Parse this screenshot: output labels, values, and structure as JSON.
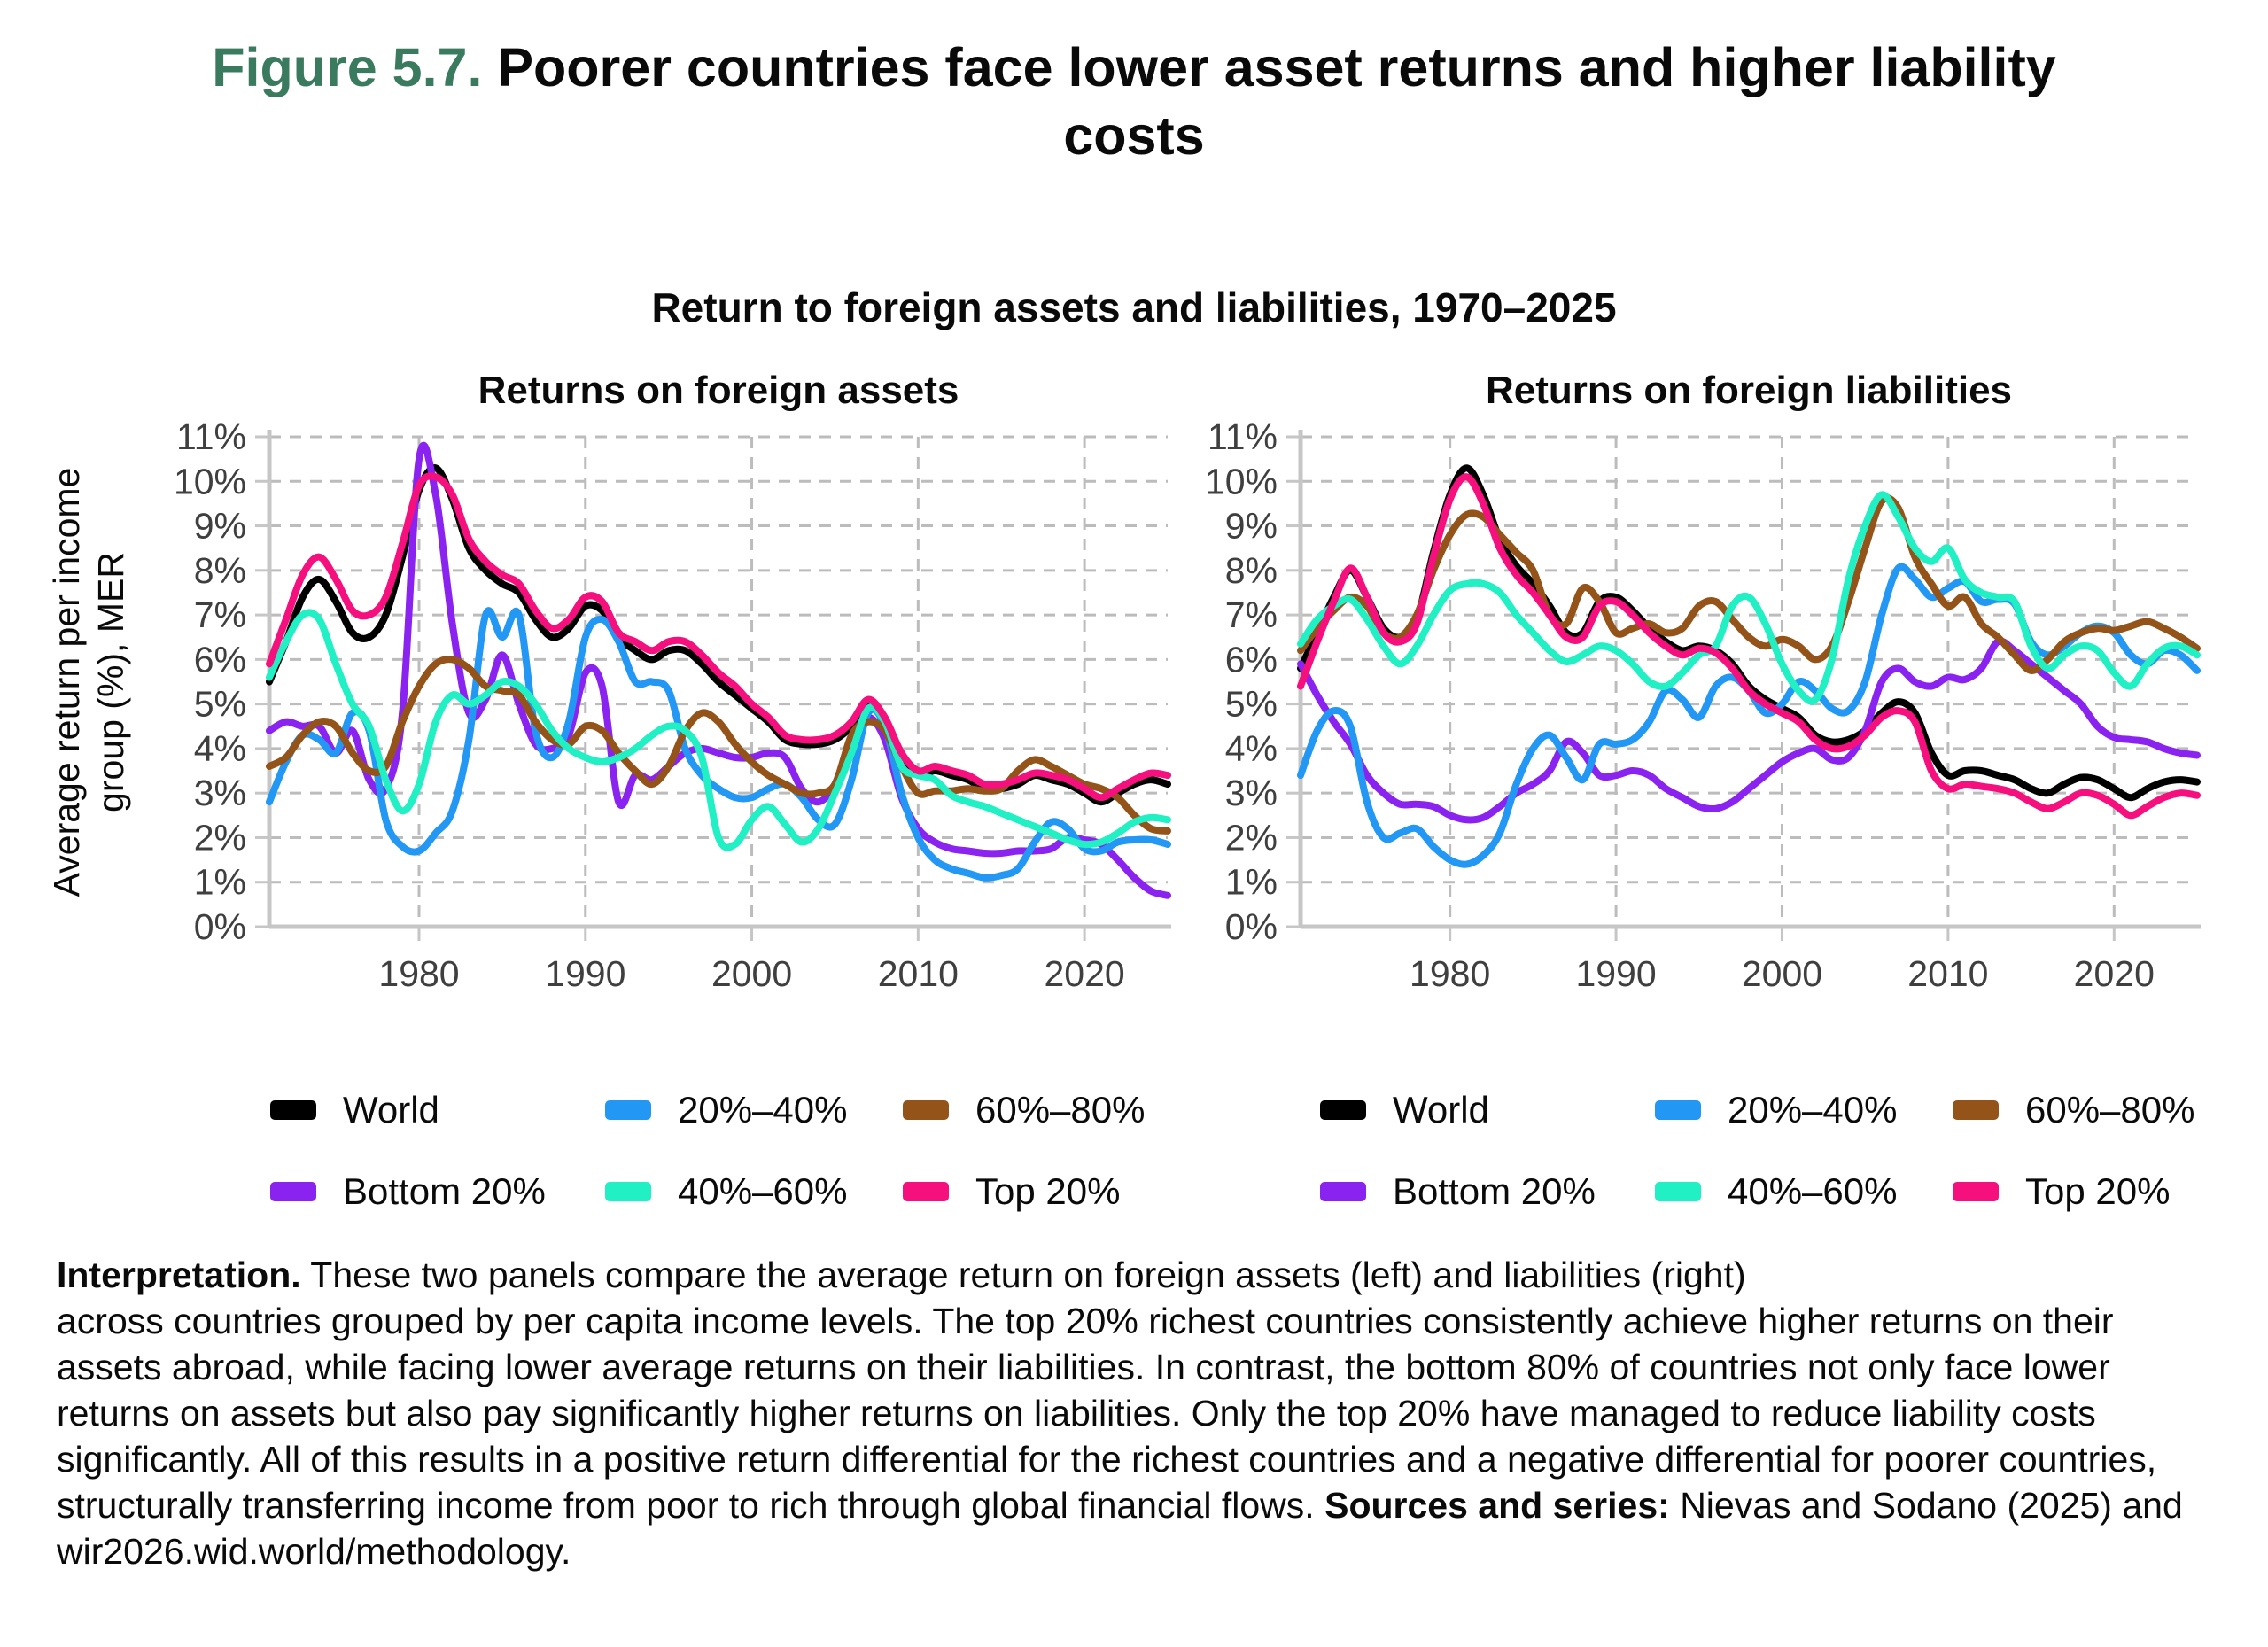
{
  "figure": {
    "label": "Figure 5.7.",
    "label_color": "#3a7a5e",
    "title_line1": "Poorer countries face lower asset returns and higher liability",
    "title_line2": "costs",
    "subtitle": "Return to foreign assets and liabilities, 1970–2025"
  },
  "y_axis_label": [
    "Average return per income",
    "group (%), MER"
  ],
  "legend": {
    "entries": [
      {
        "label": "World",
        "color": "#000000"
      },
      {
        "label": "20%–40%",
        "color": "#2297f3"
      },
      {
        "label": "60%–80%",
        "color": "#945318"
      },
      {
        "label": "Bottom 20%",
        "color": "#8a23f0"
      },
      {
        "label": "40%–60%",
        "color": "#21f0c4"
      },
      {
        "label": "Top 20%",
        "color": "#f5107e"
      }
    ]
  },
  "interpretation": {
    "label": "Interpretation.",
    "line1": "These two panels compare the average return on foreign assets (left) and liabilities (right)",
    "rest": "across countries grouped by per capita income levels. The top 20% richest countries consistently achieve higher returns on their assets abroad, while facing lower average returns on their liabilities. In contrast, the bottom 80% of countries not only face lower returns on assets but also pay significantly higher returns on liabilities. Only the top 20% have managed to reduce liability costs significantly. All of this results in a positive return differential for the richest countries and a negative differential for poorer countries, structurally transferring income from poor to rich through global financial flows.",
    "sources_label": "Sources and series:",
    "sources_text": "Nievas and Sodano (2025) and wir2026.wid.world/methodology."
  },
  "chart_data": [
    {
      "type": "line",
      "title": "Returns on foreign assets",
      "xlabel": "",
      "ylabel": "Average return per income group (%), MER",
      "x_start": 1971,
      "x_end": 2025,
      "x_step": 1,
      "x_ticks": [
        1980,
        1990,
        2000,
        2010,
        2020
      ],
      "ylim": [
        0,
        11
      ],
      "y_tick_labels": [
        "0%",
        "1%",
        "2%",
        "3%",
        "4%",
        "5%",
        "6%",
        "7%",
        "8%",
        "9%",
        "10%",
        "11%"
      ],
      "grid": "dashed",
      "series": [
        {
          "name": "World",
          "color": "#000000",
          "values": [
            5.5,
            6.4,
            7.4,
            7.8,
            7.3,
            6.6,
            6.5,
            7.0,
            8.3,
            9.8,
            10.3,
            9.6,
            8.5,
            8.0,
            7.7,
            7.5,
            6.9,
            6.5,
            6.7,
            7.2,
            7.1,
            6.5,
            6.2,
            6.0,
            6.2,
            6.2,
            5.9,
            5.5,
            5.2,
            4.9,
            4.6,
            4.2,
            4.1,
            4.1,
            4.2,
            4.5,
            5.0,
            4.6,
            3.8,
            3.4,
            3.5,
            3.4,
            3.3,
            3.1,
            3.1,
            3.2,
            3.4,
            3.3,
            3.2,
            3.0,
            2.8,
            3.0,
            3.2,
            3.3,
            3.2
          ]
        },
        {
          "name": "Bottom 20%",
          "color": "#8a23f0",
          "values": [
            4.4,
            4.6,
            4.5,
            4.5,
            3.9,
            4.4,
            3.3,
            3.1,
            4.8,
            10.5,
            9.7,
            6.8,
            4.8,
            5.1,
            6.1,
            5.0,
            4.1,
            4.0,
            4.3,
            5.7,
            5.4,
            2.8,
            3.4,
            3.3,
            3.6,
            3.9,
            4.0,
            3.9,
            3.8,
            3.8,
            3.9,
            3.8,
            3.1,
            2.8,
            3.2,
            4.2,
            4.7,
            4.2,
            2.9,
            2.2,
            1.9,
            1.75,
            1.7,
            1.65,
            1.65,
            1.7,
            1.7,
            1.75,
            2.0,
            1.95,
            1.85,
            1.5,
            1.1,
            0.8,
            0.7
          ]
        },
        {
          "name": "20%–40%",
          "color": "#2297f3",
          "values": [
            2.8,
            3.7,
            4.3,
            4.2,
            3.9,
            4.8,
            4.4,
            2.4,
            1.8,
            1.7,
            2.1,
            2.6,
            4.2,
            7.0,
            6.5,
            7.0,
            4.4,
            3.8,
            4.6,
            6.5,
            6.9,
            6.4,
            5.5,
            5.5,
            5.3,
            4.0,
            3.4,
            3.1,
            2.9,
            2.9,
            3.1,
            3.2,
            2.9,
            2.4,
            2.3,
            3.3,
            4.8,
            4.5,
            3.0,
            2.0,
            1.5,
            1.3,
            1.2,
            1.1,
            1.15,
            1.3,
            1.9,
            2.35,
            2.2,
            1.75,
            1.7,
            1.9,
            1.95,
            1.95,
            1.85
          ]
        },
        {
          "name": "60%–80%",
          "color": "#945318",
          "values": [
            3.6,
            3.8,
            4.3,
            4.6,
            4.5,
            3.9,
            3.5,
            3.6,
            4.6,
            5.4,
            5.9,
            6.0,
            5.8,
            5.4,
            5.3,
            5.2,
            4.6,
            4.2,
            4.1,
            4.5,
            4.4,
            3.9,
            3.5,
            3.2,
            3.6,
            4.4,
            4.8,
            4.6,
            4.1,
            3.7,
            3.4,
            3.2,
            3.0,
            3.0,
            3.2,
            4.3,
            4.6,
            4.4,
            3.6,
            3.0,
            3.05,
            3.05,
            3.1,
            3.05,
            3.1,
            3.5,
            3.75,
            3.6,
            3.4,
            3.2,
            3.1,
            2.9,
            2.5,
            2.2,
            2.15
          ]
        },
        {
          "name": "40%–60%",
          "color": "#21f0c4",
          "values": [
            5.6,
            6.4,
            7.0,
            6.9,
            5.9,
            5.0,
            4.5,
            3.3,
            2.6,
            3.2,
            4.6,
            5.2,
            5.0,
            5.2,
            5.5,
            5.4,
            5.0,
            4.4,
            4.0,
            3.8,
            3.7,
            3.8,
            4.0,
            4.3,
            4.5,
            4.4,
            3.8,
            2.0,
            1.85,
            2.4,
            2.7,
            2.3,
            1.9,
            2.2,
            3.0,
            3.9,
            4.9,
            4.6,
            3.6,
            3.4,
            3.3,
            2.95,
            2.8,
            2.7,
            2.55,
            2.4,
            2.25,
            2.1,
            1.95,
            1.85,
            1.9,
            2.1,
            2.35,
            2.45,
            2.4
          ]
        },
        {
          "name": "Top 20%",
          "color": "#f5107e",
          "values": [
            5.9,
            6.9,
            7.9,
            8.3,
            7.8,
            7.1,
            7.0,
            7.4,
            8.6,
            9.9,
            10.1,
            9.7,
            8.7,
            8.2,
            7.9,
            7.7,
            7.1,
            6.7,
            6.9,
            7.4,
            7.3,
            6.6,
            6.4,
            6.2,
            6.4,
            6.4,
            6.1,
            5.7,
            5.4,
            5.0,
            4.7,
            4.3,
            4.2,
            4.2,
            4.3,
            4.6,
            5.1,
            4.7,
            3.9,
            3.5,
            3.6,
            3.5,
            3.4,
            3.2,
            3.2,
            3.3,
            3.45,
            3.4,
            3.3,
            3.1,
            2.9,
            3.1,
            3.3,
            3.45,
            3.4
          ]
        }
      ]
    },
    {
      "type": "line",
      "title": "Returns on foreign liabilities",
      "xlabel": "",
      "ylabel": "Average return per income group (%), MER",
      "x_start": 1971,
      "x_end": 2025,
      "x_step": 1,
      "x_ticks": [
        1980,
        1990,
        2000,
        2010,
        2020
      ],
      "ylim": [
        0,
        11
      ],
      "y_tick_labels": [
        "0%",
        "1%",
        "2%",
        "3%",
        "4%",
        "5%",
        "6%",
        "7%",
        "8%",
        "9%",
        "10%",
        "11%"
      ],
      "grid": "dashed",
      "series": [
        {
          "name": "World",
          "color": "#000000",
          "values": [
            5.8,
            6.6,
            7.4,
            8.0,
            7.4,
            6.7,
            6.5,
            6.9,
            8.4,
            9.7,
            10.3,
            9.7,
            8.7,
            8.1,
            7.7,
            7.2,
            6.6,
            6.6,
            7.3,
            7.4,
            7.1,
            6.7,
            6.4,
            6.2,
            6.3,
            6.2,
            5.9,
            5.4,
            5.1,
            4.9,
            4.7,
            4.3,
            4.15,
            4.2,
            4.4,
            4.8,
            5.05,
            4.8,
            3.9,
            3.4,
            3.5,
            3.5,
            3.4,
            3.3,
            3.1,
            3.0,
            3.2,
            3.35,
            3.3,
            3.1,
            2.9,
            3.1,
            3.25,
            3.3,
            3.25
          ]
        },
        {
          "name": "Bottom 20%",
          "color": "#8a23f0",
          "values": [
            5.9,
            5.2,
            4.6,
            4.1,
            3.4,
            3.0,
            2.75,
            2.75,
            2.7,
            2.5,
            2.4,
            2.45,
            2.7,
            3.0,
            3.2,
            3.5,
            4.15,
            3.9,
            3.4,
            3.4,
            3.5,
            3.4,
            3.1,
            2.9,
            2.7,
            2.65,
            2.8,
            3.1,
            3.4,
            3.7,
            3.9,
            4.0,
            3.75,
            3.8,
            4.4,
            5.5,
            5.8,
            5.5,
            5.4,
            5.6,
            5.55,
            5.8,
            6.4,
            6.2,
            5.9,
            5.6,
            5.3,
            5.0,
            4.5,
            4.25,
            4.2,
            4.15,
            4.0,
            3.9,
            3.85
          ]
        },
        {
          "name": "20%–40%",
          "color": "#2297f3",
          "values": [
            3.4,
            4.4,
            4.85,
            4.5,
            2.8,
            2.0,
            2.1,
            2.2,
            1.8,
            1.5,
            1.4,
            1.6,
            2.1,
            3.2,
            4.0,
            4.3,
            3.8,
            3.3,
            4.1,
            4.1,
            4.2,
            4.6,
            5.3,
            5.1,
            4.7,
            5.4,
            5.6,
            5.3,
            4.8,
            5.0,
            5.5,
            5.3,
            4.9,
            4.85,
            5.5,
            7.0,
            8.05,
            7.8,
            7.4,
            7.6,
            7.75,
            7.3,
            7.35,
            7.25,
            6.4,
            6.1,
            6.3,
            6.6,
            6.75,
            6.6,
            6.1,
            5.9,
            6.2,
            6.1,
            5.75
          ]
        },
        {
          "name": "60%–80%",
          "color": "#945318",
          "values": [
            6.2,
            6.7,
            7.1,
            7.4,
            7.2,
            6.6,
            6.5,
            7.0,
            8.0,
            8.8,
            9.25,
            9.2,
            8.8,
            8.4,
            8.0,
            7.0,
            6.8,
            7.6,
            7.3,
            6.6,
            6.7,
            6.8,
            6.6,
            6.7,
            7.2,
            7.3,
            6.9,
            6.5,
            6.3,
            6.45,
            6.3,
            6.0,
            6.3,
            7.3,
            8.5,
            9.55,
            9.4,
            8.3,
            7.7,
            7.2,
            7.4,
            6.8,
            6.5,
            6.1,
            5.75,
            6.0,
            6.4,
            6.6,
            6.7,
            6.65,
            6.75,
            6.85,
            6.7,
            6.5,
            6.25
          ]
        },
        {
          "name": "40%–60%",
          "color": "#21f0c4",
          "values": [
            6.35,
            6.9,
            7.2,
            7.35,
            6.9,
            6.3,
            5.9,
            6.3,
            7.0,
            7.55,
            7.7,
            7.7,
            7.5,
            7.0,
            6.6,
            6.2,
            5.95,
            6.1,
            6.3,
            6.2,
            5.9,
            5.5,
            5.4,
            5.7,
            6.1,
            6.3,
            7.2,
            7.4,
            6.8,
            5.9,
            5.3,
            5.1,
            6.0,
            7.8,
            9.0,
            9.7,
            9.2,
            8.5,
            8.2,
            8.5,
            7.8,
            7.5,
            7.4,
            7.3,
            6.3,
            5.8,
            6.1,
            6.3,
            6.2,
            5.7,
            5.4,
            5.9,
            6.25,
            6.3,
            6.1
          ]
        },
        {
          "name": "Top 20%",
          "color": "#f5107e",
          "values": [
            5.4,
            6.4,
            7.3,
            8.05,
            7.4,
            6.6,
            6.4,
            6.8,
            8.3,
            9.6,
            10.1,
            9.5,
            8.5,
            7.9,
            7.5,
            7.0,
            6.5,
            6.5,
            7.2,
            7.3,
            7.0,
            6.6,
            6.3,
            6.1,
            6.25,
            6.15,
            5.8,
            5.3,
            5.0,
            4.8,
            4.6,
            4.2,
            4.0,
            4.05,
            4.3,
            4.7,
            4.85,
            4.6,
            3.5,
            3.1,
            3.2,
            3.15,
            3.1,
            3.0,
            2.8,
            2.65,
            2.8,
            3.0,
            2.95,
            2.75,
            2.5,
            2.7,
            2.9,
            3.0,
            2.95
          ]
        }
      ]
    }
  ]
}
